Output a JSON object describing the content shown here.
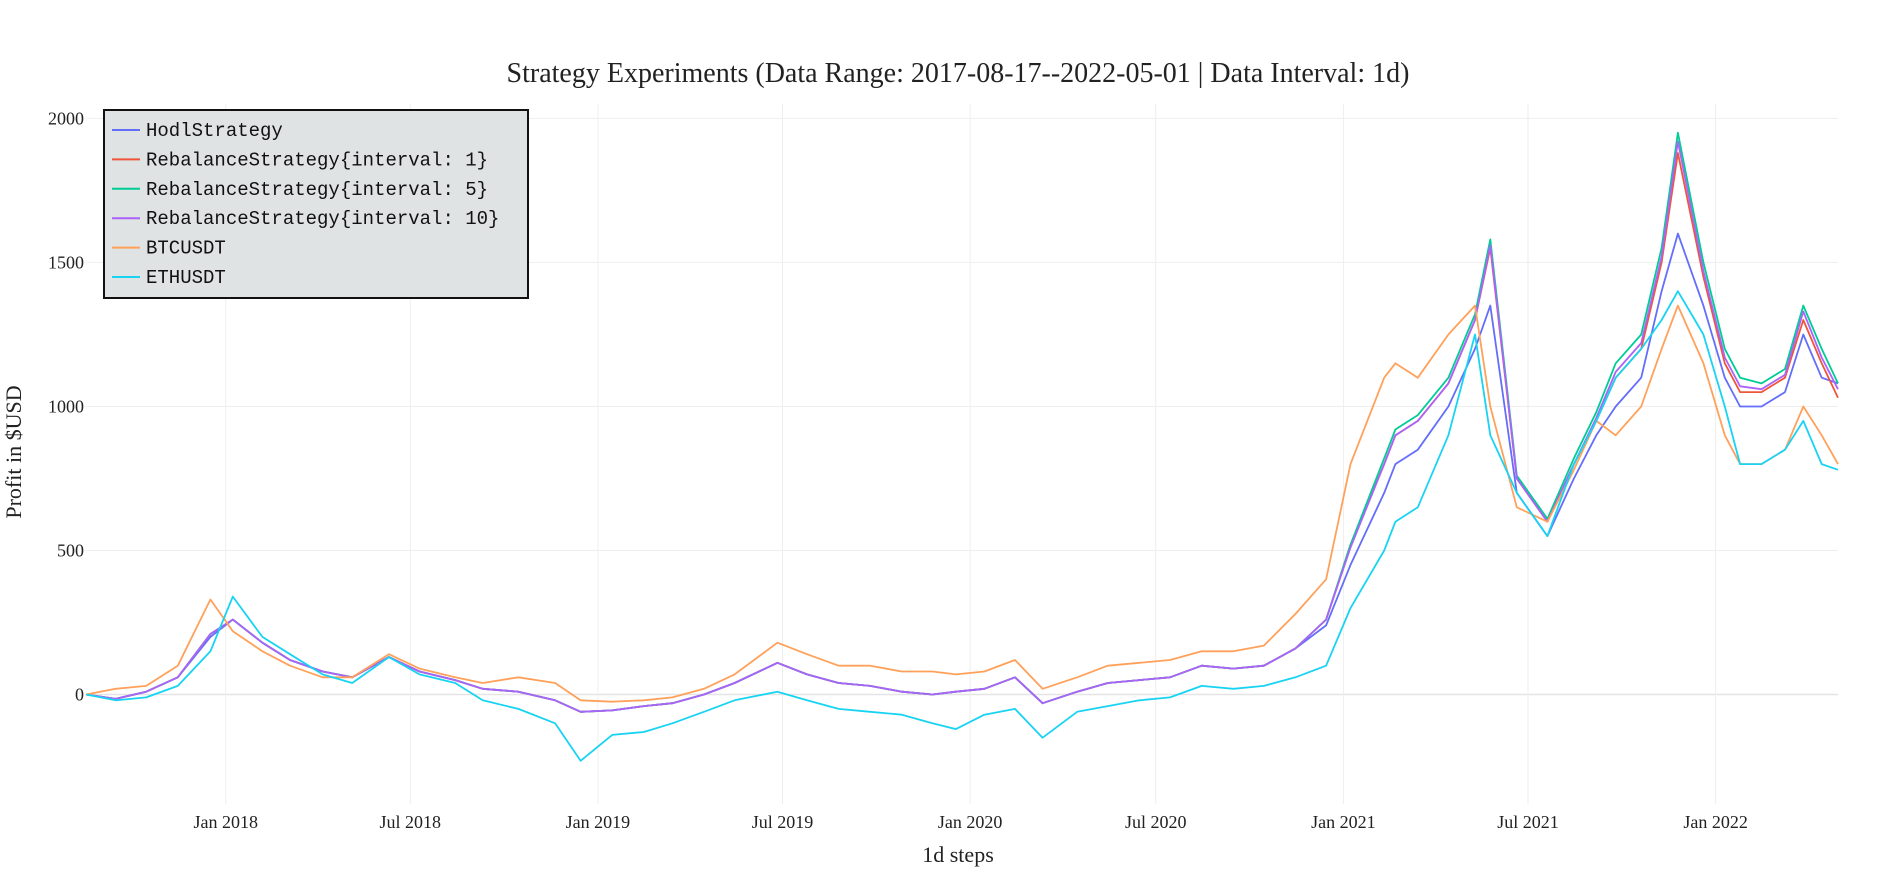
{
  "chart_data": {
    "type": "line",
    "title": "Strategy Experiments (Data Range: 2017-08-17--2022-05-01 | Data Interval: 1d)",
    "xlabel": "1d steps",
    "ylabel": "Profit in $USD",
    "x_range": [
      "2017-08-17",
      "2022-05-01"
    ],
    "ylim": [
      -380,
      2050
    ],
    "x_ticks": [
      {
        "date": "2018-01-01",
        "label": "Jan 2018"
      },
      {
        "date": "2018-07-01",
        "label": "Jul 2018"
      },
      {
        "date": "2019-01-01",
        "label": "Jan 2019"
      },
      {
        "date": "2019-07-01",
        "label": "Jul 2019"
      },
      {
        "date": "2020-01-01",
        "label": "Jan 2020"
      },
      {
        "date": "2020-07-01",
        "label": "Jul 2020"
      },
      {
        "date": "2021-01-01",
        "label": "Jan 2021"
      },
      {
        "date": "2021-07-01",
        "label": "Jul 2021"
      },
      {
        "date": "2022-01-01",
        "label": "Jan 2022"
      }
    ],
    "y_ticks": [
      0,
      500,
      1000,
      1500,
      2000
    ],
    "grid": true,
    "legend_position": "top-left",
    "dates": [
      "2017-08-17",
      "2017-09-15",
      "2017-10-15",
      "2017-11-15",
      "2017-12-17",
      "2018-01-08",
      "2018-02-06",
      "2018-03-05",
      "2018-04-06",
      "2018-05-05",
      "2018-06-10",
      "2018-07-10",
      "2018-08-14",
      "2018-09-10",
      "2018-10-15",
      "2018-11-20",
      "2018-12-15",
      "2019-01-15",
      "2019-02-15",
      "2019-03-15",
      "2019-04-15",
      "2019-05-15",
      "2019-06-26",
      "2019-07-25",
      "2019-08-25",
      "2019-09-25",
      "2019-10-26",
      "2019-11-25",
      "2019-12-18",
      "2020-01-15",
      "2020-02-14",
      "2020-03-12",
      "2020-04-15",
      "2020-05-15",
      "2020-06-15",
      "2020-07-15",
      "2020-08-15",
      "2020-09-15",
      "2020-10-15",
      "2020-11-15",
      "2020-12-15",
      "2021-01-08",
      "2021-02-10",
      "2021-02-21",
      "2021-03-15",
      "2021-04-14",
      "2021-05-10",
      "2021-05-25",
      "2021-06-20",
      "2021-07-20",
      "2021-08-15",
      "2021-09-06",
      "2021-09-25",
      "2021-10-20",
      "2021-11-09",
      "2021-11-25",
      "2021-12-20",
      "2022-01-10",
      "2022-01-25",
      "2022-02-15",
      "2022-03-10",
      "2022-03-28",
      "2022-04-15",
      "2022-05-01"
    ],
    "series": [
      {
        "name": "HodlStrategy",
        "color": "#636efa",
        "values": [
          0,
          -15,
          10,
          60,
          200,
          260,
          180,
          120,
          80,
          60,
          130,
          80,
          50,
          20,
          10,
          -20,
          -60,
          -55,
          -40,
          -30,
          0,
          40,
          110,
          70,
          40,
          30,
          10,
          0,
          10,
          20,
          60,
          -30,
          10,
          40,
          50,
          60,
          100,
          90,
          100,
          160,
          240,
          450,
          700,
          800,
          850,
          1000,
          1200,
          1350,
          700,
          550,
          750,
          900,
          1000,
          1100,
          1400,
          1600,
          1350,
          1100,
          1000,
          1000,
          1050,
          1250,
          1100,
          1080
        ]
      },
      {
        "name": "RebalanceStrategy{interval: 1}",
        "color": "#ef553b",
        "values": [
          0,
          -15,
          10,
          60,
          210,
          260,
          180,
          120,
          80,
          60,
          130,
          80,
          50,
          20,
          10,
          -20,
          -60,
          -55,
          -40,
          -30,
          0,
          40,
          110,
          70,
          40,
          30,
          10,
          0,
          10,
          20,
          60,
          -30,
          10,
          40,
          50,
          60,
          100,
          90,
          100,
          160,
          260,
          520,
          800,
          900,
          950,
          1080,
          1300,
          1550,
          750,
          600,
          800,
          950,
          1100,
          1200,
          1500,
          1880,
          1450,
          1150,
          1050,
          1050,
          1100,
          1300,
          1150,
          1030
        ]
      },
      {
        "name": "RebalanceStrategy{interval: 5}",
        "color": "#00cc96",
        "values": [
          0,
          -15,
          10,
          60,
          210,
          260,
          180,
          120,
          80,
          60,
          130,
          80,
          50,
          20,
          10,
          -20,
          -60,
          -55,
          -40,
          -30,
          0,
          40,
          110,
          70,
          40,
          30,
          10,
          0,
          10,
          20,
          60,
          -30,
          10,
          40,
          50,
          60,
          100,
          90,
          100,
          160,
          260,
          520,
          820,
          920,
          970,
          1100,
          1320,
          1580,
          760,
          610,
          820,
          980,
          1150,
          1250,
          1550,
          1950,
          1500,
          1200,
          1100,
          1080,
          1130,
          1350,
          1200,
          1080
        ]
      },
      {
        "name": "RebalanceStrategy{interval: 10}",
        "color": "#ab63fa",
        "values": [
          0,
          -15,
          10,
          60,
          210,
          260,
          180,
          120,
          80,
          60,
          130,
          80,
          50,
          20,
          10,
          -20,
          -60,
          -55,
          -40,
          -30,
          0,
          40,
          110,
          70,
          40,
          30,
          10,
          0,
          10,
          20,
          60,
          -30,
          10,
          40,
          50,
          60,
          100,
          90,
          100,
          160,
          260,
          510,
          800,
          900,
          950,
          1080,
          1300,
          1560,
          750,
          600,
          800,
          960,
          1120,
          1220,
          1520,
          1920,
          1470,
          1170,
          1070,
          1060,
          1110,
          1330,
          1170,
          1060
        ]
      },
      {
        "name": "BTCUSDT",
        "color": "#ffa15a",
        "values": [
          0,
          20,
          30,
          100,
          330,
          220,
          150,
          100,
          60,
          60,
          140,
          90,
          60,
          40,
          60,
          40,
          -20,
          -25,
          -20,
          -10,
          20,
          70,
          180,
          140,
          100,
          100,
          80,
          80,
          70,
          80,
          120,
          20,
          60,
          100,
          110,
          120,
          150,
          150,
          170,
          280,
          400,
          800,
          1100,
          1150,
          1100,
          1250,
          1350,
          1000,
          650,
          600,
          780,
          950,
          900,
          1000,
          1200,
          1350,
          1150,
          900,
          800,
          800,
          850,
          1000,
          900,
          800
        ]
      },
      {
        "name": "ETHUSDT",
        "color": "#19d3f3",
        "values": [
          0,
          -20,
          -10,
          30,
          150,
          340,
          200,
          140,
          70,
          40,
          130,
          70,
          40,
          -20,
          -50,
          -100,
          -230,
          -140,
          -130,
          -100,
          -60,
          -20,
          10,
          -20,
          -50,
          -60,
          -70,
          -100,
          -120,
          -70,
          -50,
          -150,
          -60,
          -40,
          -20,
          -10,
          30,
          20,
          30,
          60,
          100,
          300,
          500,
          600,
          650,
          900,
          1250,
          900,
          700,
          550,
          800,
          950,
          1100,
          1200,
          1300,
          1400,
          1250,
          1000,
          800,
          800,
          850,
          950,
          800,
          780
        ]
      }
    ]
  }
}
